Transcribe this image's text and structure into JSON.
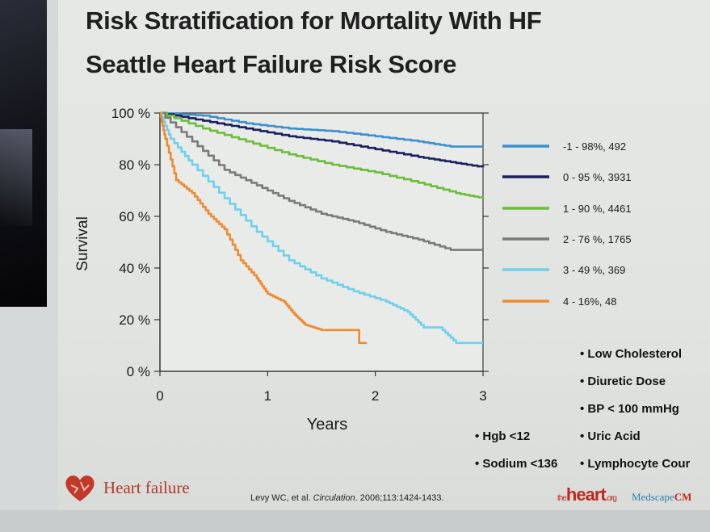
{
  "slide": {
    "title_line1": "Risk Stratification for Mortality With HF",
    "title_line2": "Seattle Heart Failure Risk Score"
  },
  "chart_data": {
    "type": "line",
    "ylabel": "Survival",
    "xlabel": "Years",
    "xlim": [
      0,
      3
    ],
    "ylim": [
      0,
      100
    ],
    "x_ticks": [
      "0",
      "1",
      "2",
      "3"
    ],
    "y_ticks": [
      "0 %",
      "20 %",
      "40 %",
      "60 %",
      "80 %",
      "100 %"
    ],
    "legend_position": "right",
    "series": [
      {
        "name": "-1 - 98%, 492",
        "color": "#3d8fcf",
        "points": [
          [
            0,
            100
          ],
          [
            0.4,
            99
          ],
          [
            0.8,
            96
          ],
          [
            1.2,
            94
          ],
          [
            1.6,
            93
          ],
          [
            2.0,
            91
          ],
          [
            2.4,
            89
          ],
          [
            2.7,
            87
          ],
          [
            3.0,
            87
          ]
        ]
      },
      {
        "name": "0 - 95 %, 3931",
        "color": "#1a1f5e",
        "points": [
          [
            0,
            100
          ],
          [
            0.4,
            97
          ],
          [
            0.8,
            94
          ],
          [
            1.2,
            91
          ],
          [
            1.6,
            89
          ],
          [
            2.0,
            86
          ],
          [
            2.4,
            83
          ],
          [
            2.7,
            81
          ],
          [
            3.0,
            79
          ]
        ]
      },
      {
        "name": "1 - 90 %, 4461",
        "color": "#6bbd3a",
        "points": [
          [
            0,
            100
          ],
          [
            0.4,
            94
          ],
          [
            0.8,
            89
          ],
          [
            1.2,
            84
          ],
          [
            1.6,
            80
          ],
          [
            2.0,
            77
          ],
          [
            2.4,
            73
          ],
          [
            2.75,
            69
          ],
          [
            3.0,
            67
          ]
        ]
      },
      {
        "name": "2 - 76 %, 1765",
        "color": "#7a7a7a",
        "points": [
          [
            0,
            100
          ],
          [
            0.3,
            89
          ],
          [
            0.6,
            78
          ],
          [
            0.9,
            72
          ],
          [
            1.2,
            66
          ],
          [
            1.5,
            61
          ],
          [
            1.8,
            58
          ],
          [
            2.1,
            54
          ],
          [
            2.4,
            51
          ],
          [
            2.7,
            47
          ],
          [
            3.0,
            47
          ]
        ]
      },
      {
        "name": "3 - 49 %, 369",
        "color": "#6fd0ec",
        "points": [
          [
            0,
            100
          ],
          [
            0.1,
            90
          ],
          [
            0.3,
            80
          ],
          [
            0.6,
            67
          ],
          [
            0.9,
            54
          ],
          [
            1.2,
            43
          ],
          [
            1.5,
            36
          ],
          [
            1.8,
            31
          ],
          [
            2.1,
            27
          ],
          [
            2.3,
            23
          ],
          [
            2.45,
            17
          ],
          [
            2.6,
            17
          ],
          [
            2.75,
            11
          ],
          [
            3.0,
            11
          ]
        ]
      },
      {
        "name": "4 - 16%, 48",
        "color": "#f08a2e",
        "points": [
          [
            0,
            100
          ],
          [
            0.05,
            90
          ],
          [
            0.15,
            74
          ],
          [
            0.3,
            69
          ],
          [
            0.45,
            61
          ],
          [
            0.6,
            55
          ],
          [
            0.75,
            43
          ],
          [
            0.9,
            36
          ],
          [
            1.0,
            30
          ],
          [
            1.15,
            27
          ],
          [
            1.25,
            22
          ],
          [
            1.35,
            18
          ],
          [
            1.5,
            16
          ],
          [
            1.85,
            16
          ],
          [
            1.85,
            11
          ],
          [
            1.92,
            11
          ]
        ]
      }
    ]
  },
  "bullets_right": [
    "• Low Cholesterol",
    "• Diuretic Dose",
    "• BP < 100 mmHg",
    "• Uric Acid",
    "• Lymphocyte Cour"
  ],
  "bullets_left": [
    "• Hgb <12",
    "• Sodium <136"
  ],
  "footer": {
    "hf_logo": "Heart failure",
    "citation_authors": "Levy WC, et al. ",
    "citation_journal": "Circulation",
    "citation_rest": ". 2006;113:1424-1433.",
    "theheart_small": "the",
    "theheart": "heart",
    "theheart_org": ".org",
    "medscape_a": "Medscape",
    "medscape_b": "CM"
  }
}
